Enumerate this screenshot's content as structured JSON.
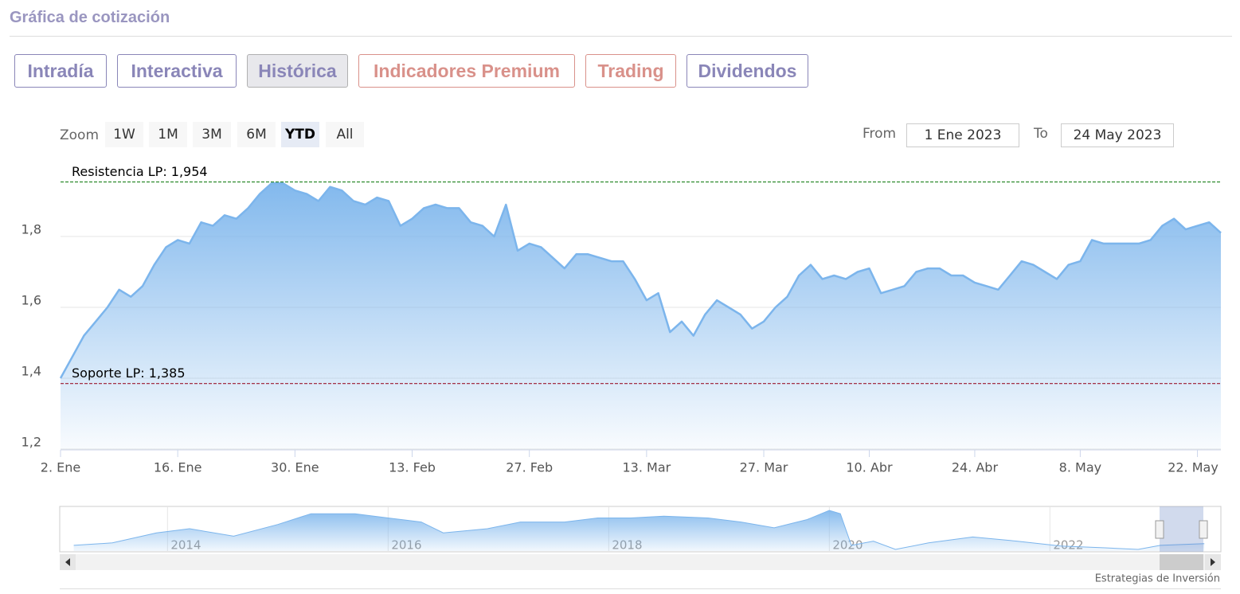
{
  "header": {
    "title": "Gráfica de cotización"
  },
  "tabs": {
    "items": [
      "Intradía",
      "Interactiva",
      "Histórica",
      "Indicadores Premium",
      "Trading",
      "Dividendos"
    ],
    "colors": [
      "#8a86b8",
      "#8a86b8",
      "#8a86b8",
      "#d9918a",
      "#d9918a",
      "#8a86b8"
    ],
    "active": 2
  },
  "zoom": {
    "label": "Zoom",
    "buttons": [
      "1W",
      "1M",
      "3M",
      "6M",
      "YTD",
      "All"
    ],
    "selected": 4
  },
  "range": {
    "from_label": "From",
    "from": "1 Ene 2023",
    "to_label": "To",
    "to": "24 May 2023"
  },
  "chart_data": {
    "type": "area",
    "x": [
      "2023-01-02",
      "2023-01-03",
      "2023-01-04",
      "2023-01-05",
      "2023-01-06",
      "2023-01-09",
      "2023-01-10",
      "2023-01-11",
      "2023-01-12",
      "2023-01-13",
      "2023-01-16",
      "2023-01-17",
      "2023-01-18",
      "2023-01-19",
      "2023-01-20",
      "2023-01-23",
      "2023-01-24",
      "2023-01-25",
      "2023-01-26",
      "2023-01-27",
      "2023-01-30",
      "2023-01-31",
      "2023-02-01",
      "2023-02-02",
      "2023-02-03",
      "2023-02-06",
      "2023-02-07",
      "2023-02-08",
      "2023-02-09",
      "2023-02-10",
      "2023-02-13",
      "2023-02-14",
      "2023-02-15",
      "2023-02-16",
      "2023-02-17",
      "2023-02-20",
      "2023-02-21",
      "2023-02-22",
      "2023-02-23",
      "2023-02-24",
      "2023-02-27",
      "2023-02-28",
      "2023-03-01",
      "2023-03-02",
      "2023-03-03",
      "2023-03-06",
      "2023-03-07",
      "2023-03-08",
      "2023-03-09",
      "2023-03-10",
      "2023-03-13",
      "2023-03-14",
      "2023-03-15",
      "2023-03-16",
      "2023-03-17",
      "2023-03-20",
      "2023-03-21",
      "2023-03-22",
      "2023-03-23",
      "2023-03-24",
      "2023-03-27",
      "2023-03-28",
      "2023-03-29",
      "2023-03-30",
      "2023-03-31",
      "2023-04-03",
      "2023-04-04",
      "2023-04-05",
      "2023-04-06",
      "2023-04-11",
      "2023-04-12",
      "2023-04-13",
      "2023-04-14",
      "2023-04-17",
      "2023-04-18",
      "2023-04-19",
      "2023-04-20",
      "2023-04-21",
      "2023-04-24",
      "2023-04-25",
      "2023-04-26",
      "2023-04-27",
      "2023-04-28",
      "2023-05-02",
      "2023-05-03",
      "2023-05-04",
      "2023-05-05",
      "2023-05-08",
      "2023-05-09",
      "2023-05-10",
      "2023-05-11",
      "2023-05-12",
      "2023-05-15",
      "2023-05-16",
      "2023-05-17",
      "2023-05-18",
      "2023-05-19",
      "2023-05-22",
      "2023-05-23",
      "2023-05-24"
    ],
    "series": [
      {
        "color": "#7cb5ec",
        "values": [
          1.4,
          1.46,
          1.52,
          1.56,
          1.6,
          1.65,
          1.63,
          1.66,
          1.72,
          1.77,
          1.79,
          1.78,
          1.84,
          1.83,
          1.86,
          1.85,
          1.88,
          1.92,
          1.95,
          1.95,
          1.93,
          1.92,
          1.9,
          1.94,
          1.93,
          1.9,
          1.89,
          1.91,
          1.9,
          1.83,
          1.85,
          1.88,
          1.89,
          1.88,
          1.88,
          1.84,
          1.83,
          1.8,
          1.89,
          1.76,
          1.78,
          1.77,
          1.74,
          1.71,
          1.75,
          1.75,
          1.74,
          1.73,
          1.73,
          1.68,
          1.62,
          1.64,
          1.53,
          1.56,
          1.52,
          1.58,
          1.62,
          1.6,
          1.58,
          1.54,
          1.56,
          1.6,
          1.63,
          1.69,
          1.72,
          1.68,
          1.69,
          1.68,
          1.7,
          1.71,
          1.64,
          1.65,
          1.66,
          1.7,
          1.71,
          1.71,
          1.69,
          1.69,
          1.67,
          1.66,
          1.65,
          1.69,
          1.73,
          1.72,
          1.7,
          1.68,
          1.72,
          1.73,
          1.79,
          1.78,
          1.78,
          1.78,
          1.78,
          1.79,
          1.83,
          1.85,
          1.82,
          1.83,
          1.84,
          1.81
        ]
      }
    ],
    "ylim": [
      1.2,
      2.0
    ],
    "yticks": [
      {
        "value": 1.2,
        "label": "1,2"
      },
      {
        "value": 1.4,
        "label": "1,4"
      },
      {
        "value": 1.6,
        "label": "1,6"
      },
      {
        "value": 1.8,
        "label": "1,8"
      }
    ],
    "xticks": [
      {
        "value": "2023-01-02",
        "label": "2. Ene"
      },
      {
        "value": "2023-01-16",
        "label": "16. Ene"
      },
      {
        "value": "2023-01-30",
        "label": "30. Ene"
      },
      {
        "value": "2023-02-13",
        "label": "13. Feb"
      },
      {
        "value": "2023-02-27",
        "label": "27. Feb"
      },
      {
        "value": "2023-03-13",
        "label": "13. Mar"
      },
      {
        "value": "2023-03-27",
        "label": "27. Mar"
      },
      {
        "value": "2023-04-10",
        "label": "10. Abr"
      },
      {
        "value": "2023-04-24",
        "label": "24. Abr"
      },
      {
        "value": "2023-05-08",
        "label": "8. May"
      },
      {
        "value": "2023-05-22",
        "label": "22. May"
      }
    ],
    "grid": true,
    "plot_lines": [
      {
        "value": 1.954,
        "label": "Resistencia LP: 1,954",
        "color": "#2d8a2d"
      },
      {
        "value": 1.385,
        "label": "Soporte LP: 1,385",
        "color": "#9b1b30"
      }
    ]
  },
  "navigator": {
    "xlim": [
      2013.03,
      2023.55
    ],
    "xticks": [
      2014,
      2016,
      2018,
      2020,
      2022
    ],
    "x": [
      2013.15,
      2013.5,
      2013.9,
      2014.2,
      2014.6,
      2015.0,
      2015.3,
      2015.7,
      2016.0,
      2016.3,
      2016.5,
      2016.9,
      2017.2,
      2017.6,
      2017.9,
      2018.2,
      2018.5,
      2018.9,
      2019.2,
      2019.5,
      2019.8,
      2020.0,
      2020.1,
      2020.2,
      2020.4,
      2020.6,
      2020.9,
      2021.3,
      2021.7,
      2022.1,
      2022.5,
      2022.8,
      2023.0,
      2023.4
    ],
    "values": [
      1.73,
      1.93,
      2.74,
      3.07,
      2.47,
      3.41,
      4.28,
      4.28,
      3.94,
      3.61,
      2.74,
      3.07,
      3.61,
      3.61,
      3.94,
      3.94,
      4.08,
      3.94,
      3.61,
      3.14,
      3.81,
      4.55,
      4.28,
      1.73,
      2.07,
      1.4,
      1.93,
      2.4,
      2.07,
      1.67,
      1.53,
      1.4,
      1.73,
      1.87
    ]
  },
  "credit": "Estrategias de Inversión"
}
